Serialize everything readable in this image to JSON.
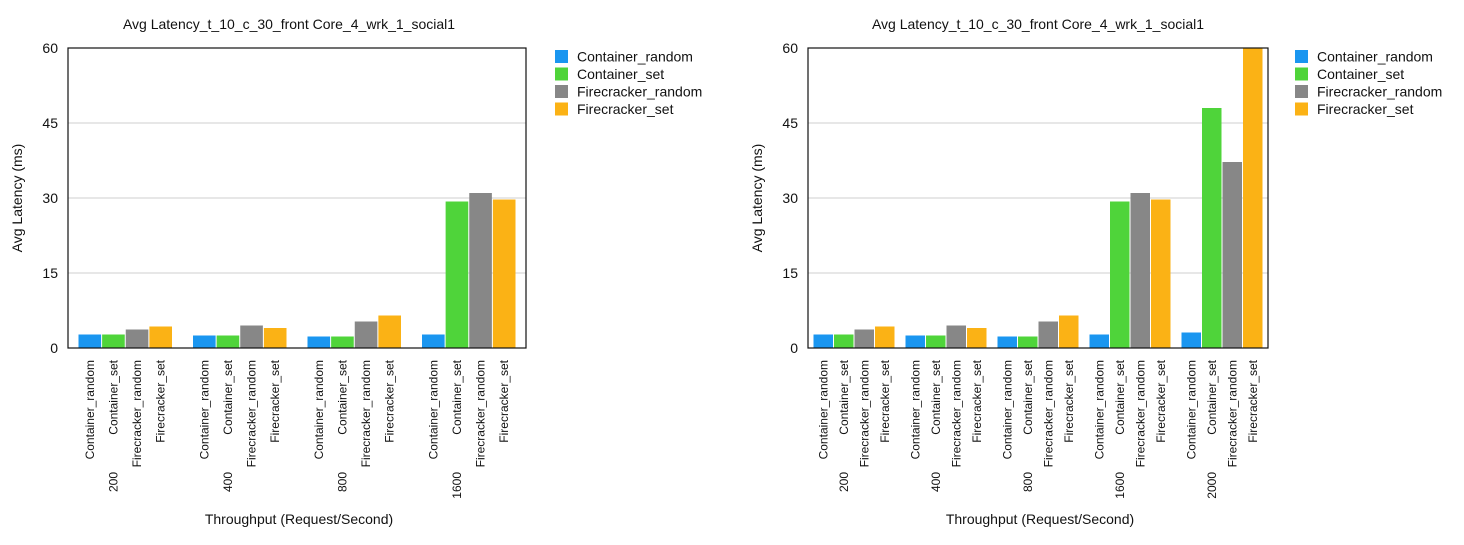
{
  "colors": {
    "Container_random": "#1a96f0",
    "Container_set": "#4fd43a",
    "Firecracker_random": "#878787",
    "Firecracker_set": "#fbb215"
  },
  "chart_data": [
    {
      "type": "bar",
      "title": "Avg Latency_t_10_c_30_front Core_4_wrk_1_social1",
      "xlabel": "Throughput (Request/Second)",
      "ylabel": "Avg Latency (ms)",
      "ylim": [
        0,
        60
      ],
      "yticks": [
        "0",
        "15",
        "30",
        "45",
        "60"
      ],
      "grid": true,
      "legend": "right",
      "categories": [
        "200",
        "400",
        "800",
        "1600"
      ],
      "series": [
        {
          "name": "Container_random",
          "values": [
            2.7,
            2.5,
            2.3,
            2.7
          ]
        },
        {
          "name": "Container_set",
          "values": [
            2.7,
            2.5,
            2.3,
            29.3
          ]
        },
        {
          "name": "Firecracker_random",
          "values": [
            3.7,
            4.5,
            5.3,
            31.0
          ]
        },
        {
          "name": "Firecracker_set",
          "values": [
            4.3,
            4.0,
            6.5,
            29.7
          ]
        }
      ]
    },
    {
      "type": "bar",
      "title": "Avg Latency_t_10_c_30_front Core_4_wrk_1_social1",
      "xlabel": "Throughput (Request/Second)",
      "ylabel": "Avg Latency (ms)",
      "ylim": [
        0,
        60
      ],
      "yticks": [
        "0",
        "15",
        "30",
        "45",
        "60"
      ],
      "grid": true,
      "legend": "right",
      "categories": [
        "200",
        "400",
        "800",
        "1600",
        "2000"
      ],
      "series": [
        {
          "name": "Container_random",
          "values": [
            2.7,
            2.5,
            2.3,
            2.7,
            3.1
          ]
        },
        {
          "name": "Container_set",
          "values": [
            2.7,
            2.5,
            2.3,
            29.3,
            48.0
          ]
        },
        {
          "name": "Firecracker_random",
          "values": [
            3.7,
            4.5,
            5.3,
            31.0,
            37.2
          ]
        },
        {
          "name": "Firecracker_set",
          "values": [
            4.3,
            4.0,
            6.5,
            29.7,
            60.0
          ]
        }
      ]
    }
  ]
}
